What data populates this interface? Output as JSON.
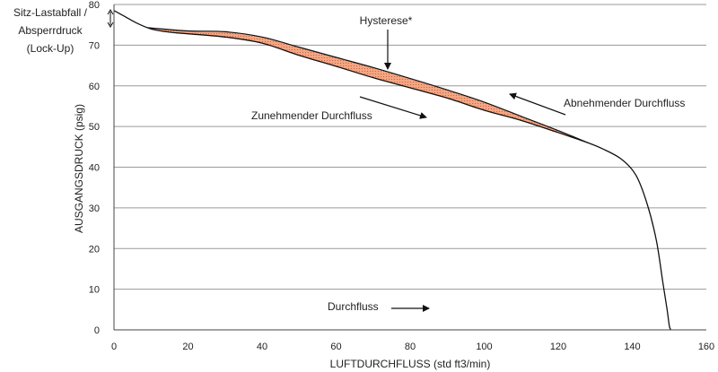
{
  "chart_data": {
    "type": "line",
    "xlabel": "LUFTDURCHFLUSS (std ft3/min)",
    "ylabel": "AUSGANGSDRUCK (psig)",
    "xlim": [
      0,
      160
    ],
    "ylim": [
      0,
      80
    ],
    "x_ticks": [
      "0",
      "20",
      "40",
      "60",
      "80",
      "100",
      "120",
      "140",
      "160"
    ],
    "y_ticks": [
      "0",
      "10",
      "20",
      "30",
      "40",
      "50",
      "60",
      "70",
      "80"
    ],
    "grid": "horizontal",
    "corner_label": [
      "Sitz-Lastabfall /",
      "Absperrdruck",
      "(Lock-Up)"
    ],
    "annotations": {
      "hysteresis": "Hysterese*",
      "increasing": "Zunehmender Durchfluss",
      "decreasing": "Abnehmender Durchfluss",
      "flow": "Durchfluss"
    },
    "hysteresis_color": "#f4a582",
    "series": [
      {
        "values_x": [
          0,
          3,
          6,
          10,
          15,
          20,
          30,
          40,
          50,
          60,
          70,
          80,
          90,
          100,
          110,
          120,
          128,
          132,
          137,
          141,
          144,
          146.5,
          148.2,
          149.4,
          150,
          150.4
        ],
        "values_y": [
          78.5,
          77,
          75.5,
          74,
          73.2,
          72.8,
          72,
          70.5,
          67.5,
          64.8,
          62,
          59.5,
          57,
          54,
          51.5,
          48.5,
          46,
          44.5,
          42,
          38,
          31,
          22,
          12,
          5,
          1,
          0
        ]
      },
      {
        "values_x": [
          9,
          20,
          30,
          40,
          50,
          60,
          70,
          80,
          90,
          100,
          110,
          120,
          128
        ],
        "values_y": [
          74.3,
          73.5,
          73.3,
          72,
          69.5,
          67,
          64.5,
          61.8,
          59,
          56,
          52.5,
          49,
          46
        ]
      }
    ]
  }
}
